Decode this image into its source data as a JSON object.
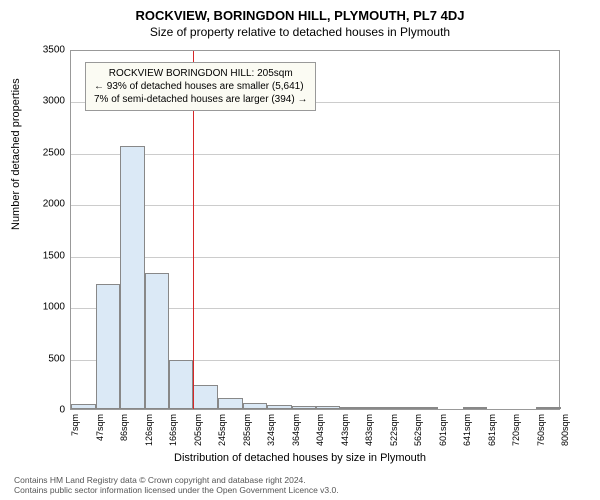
{
  "title_main": "ROCKVIEW, BORINGDON HILL, PLYMOUTH, PL7 4DJ",
  "title_sub": "Size of property relative to detached houses in Plymouth",
  "ylabel": "Number of detached properties",
  "xlabel": "Distribution of detached houses by size in Plymouth",
  "annotation": {
    "line1": "ROCKVIEW BORINGDON HILL: 205sqm",
    "line2": "← 93% of detached houses are smaller (5,641)",
    "line3": "7% of semi-detached houses are larger (394) →"
  },
  "footer": {
    "l1": "Contains HM Land Registry data © Crown copyright and database right 2024.",
    "l2": "Contains public sector information licensed under the Open Government Licence v3.0."
  },
  "chart": {
    "type": "bar-histogram",
    "background_color": "#ffffff",
    "grid_color": "#cccccc",
    "bar_fill": "#dbe9f6",
    "bar_border": "#888888",
    "refline_color": "#d62728",
    "annotation_bg": "#fbfbf3",
    "ylim": [
      0,
      3500
    ],
    "ytick_step": 500,
    "yticks": [
      0,
      500,
      1000,
      1500,
      2000,
      2500,
      3000,
      3500
    ],
    "xtick_labels": [
      "7sqm",
      "47sqm",
      "86sqm",
      "126sqm",
      "166sqm",
      "205sqm",
      "245sqm",
      "285sqm",
      "324sqm",
      "364sqm",
      "404sqm",
      "443sqm",
      "483sqm",
      "522sqm",
      "562sqm",
      "601sqm",
      "641sqm",
      "681sqm",
      "720sqm",
      "760sqm",
      "800sqm"
    ],
    "x_range": [
      7,
      800
    ],
    "ref_x": 205,
    "bars": [
      {
        "x0": 7,
        "x1": 47,
        "v": 50
      },
      {
        "x0": 47,
        "x1": 86,
        "v": 1220
      },
      {
        "x0": 86,
        "x1": 126,
        "v": 2560
      },
      {
        "x0": 126,
        "x1": 166,
        "v": 1320
      },
      {
        "x0": 166,
        "x1": 205,
        "v": 480
      },
      {
        "x0": 205,
        "x1": 245,
        "v": 230
      },
      {
        "x0": 245,
        "x1": 285,
        "v": 110
      },
      {
        "x0": 285,
        "x1": 324,
        "v": 60
      },
      {
        "x0": 324,
        "x1": 364,
        "v": 40
      },
      {
        "x0": 364,
        "x1": 404,
        "v": 30
      },
      {
        "x0": 404,
        "x1": 443,
        "v": 25
      },
      {
        "x0": 443,
        "x1": 483,
        "v": 20
      },
      {
        "x0": 483,
        "x1": 522,
        "v": 2
      },
      {
        "x0": 522,
        "x1": 562,
        "v": 2
      },
      {
        "x0": 562,
        "x1": 601,
        "v": 2
      },
      {
        "x0": 601,
        "x1": 641,
        "v": 0
      },
      {
        "x0": 641,
        "x1": 681,
        "v": 2
      },
      {
        "x0": 681,
        "x1": 720,
        "v": 0
      },
      {
        "x0": 720,
        "x1": 760,
        "v": 0
      },
      {
        "x0": 760,
        "x1": 800,
        "v": 2
      }
    ],
    "title_fontsize": 13,
    "label_fontsize": 11,
    "tick_fontsize": 10
  }
}
